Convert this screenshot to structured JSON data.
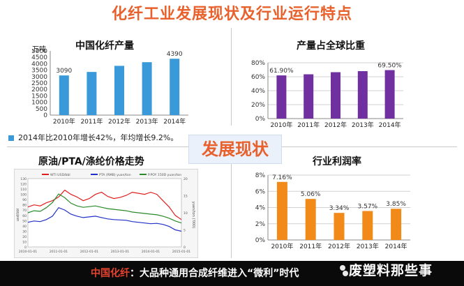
{
  "title": "化纤工业发展现状及行业运行特点",
  "center_badge": "发展现状",
  "note": "2014年比2010年增长42%，年均增长9.2%。",
  "footer": {
    "highlight": "中国化纤",
    "text": "：大品种通用合成纤维进入“微利”时代"
  },
  "brand": "废塑料那些事",
  "colors": {
    "title": "#e8612c",
    "blue": "#3a9ad9",
    "purple": "#7030a0",
    "orange": "#f28a1a"
  },
  "chart_data": [
    {
      "type": "bar",
      "title": "中国化纤产量",
      "unit": "万吨",
      "categories": [
        "2010年",
        "2011年",
        "2012年",
        "2013年",
        "2014年"
      ],
      "values": [
        3090,
        3362,
        3837,
        4122,
        4390
      ],
      "data_labels": [
        "3090",
        "",
        "",
        "",
        "4390"
      ],
      "ylim": [
        0,
        5000
      ],
      "yticks": [
        "0",
        "500",
        "1000",
        "1500",
        "2000",
        "2500",
        "3000",
        "3500",
        "4000",
        "4500",
        "5000"
      ],
      "grid": false
    },
    {
      "type": "bar",
      "title": "产量占全球比重",
      "categories": [
        "2010年",
        "2011年",
        "2012年",
        "2013年",
        "2014年"
      ],
      "values": [
        61.9,
        63.5,
        66.5,
        68.0,
        69.5
      ],
      "data_labels": [
        "61.90%",
        "",
        "",
        "",
        "69.50%"
      ],
      "ylim": [
        0,
        80
      ],
      "yticks": [
        "0%",
        "20%",
        "40%",
        "60%",
        "80%"
      ],
      "grid": true
    },
    {
      "type": "line",
      "title": "原油/PTA/涤纶价格走势",
      "legend": [
        "WTI USD/bbl",
        "PTA (RMB) yuan/ton",
        "P.POY 150D yuan/ton"
      ],
      "series": [
        {
          "name": "WTI USD/bbl",
          "values": [
            76,
            80,
            78,
            84,
            88,
            95,
            108,
            100,
            95,
            88,
            92,
            100,
            104,
            96,
            92,
            94,
            98,
            104,
            102,
            100,
            104,
            100,
            88,
            76,
            60,
            52
          ]
        },
        {
          "name": "PTA (RMB) yuan/ton",
          "values": [
            7.2,
            7.6,
            7.4,
            8.0,
            9.0,
            11.5,
            10.8,
            9.6,
            9.0,
            8.6,
            8.8,
            9.0,
            8.6,
            8.2,
            8.0,
            7.9,
            7.8,
            7.4,
            7.2,
            7.0,
            6.8,
            6.9,
            6.6,
            6.0,
            5.0,
            4.6
          ]
        },
        {
          "name": "P.POY 150D yuan/ton",
          "values": [
            10.0,
            10.6,
            10.4,
            11.5,
            13.0,
            15.5,
            14.4,
            12.8,
            12.0,
            11.6,
            11.8,
            12.0,
            11.6,
            11.2,
            11.0,
            10.8,
            10.6,
            10.2,
            10.0,
            9.8,
            9.6,
            9.4,
            9.0,
            8.4,
            7.6,
            7.0
          ]
        }
      ],
      "ylim_left": [
        0,
        130
      ],
      "ylim_right": [
        0,
        20
      ],
      "ylabel_left": "usd/bbl",
      "ylabel_right": "yuan/ton ('000)",
      "x_ticks": [
        "2010-01-01",
        "2011-01-01",
        "2012-01-01",
        "2013-01-01",
        "2014-01-01",
        "2015-01-01"
      ]
    },
    {
      "type": "bar",
      "title": "行业利润率",
      "categories": [
        "2010年",
        "2011年",
        "2012年",
        "2013年",
        "2014年"
      ],
      "values": [
        7.16,
        5.06,
        3.34,
        3.57,
        3.85
      ],
      "data_labels": [
        "7.16%",
        "5.06%",
        "3.34%",
        "3.57%",
        "3.85%"
      ],
      "ylim": [
        0,
        8
      ],
      "yticks": [
        "0%",
        "2%",
        "4%",
        "6%",
        "8%"
      ],
      "grid": true
    }
  ]
}
